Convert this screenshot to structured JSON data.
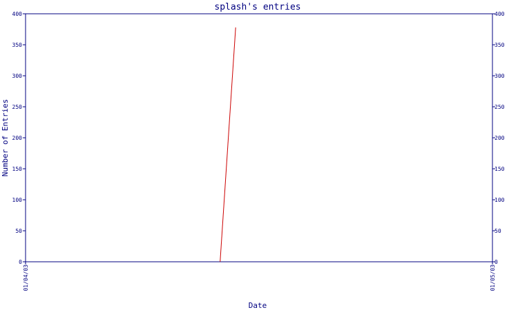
{
  "chart_data": {
    "type": "line",
    "title": "splash's entries",
    "xlabel": "Date",
    "ylabel": "Number of Entries",
    "x_ticks": [
      "01/04/03",
      "01/05/03"
    ],
    "ylim": [
      0,
      400
    ],
    "y_ticks": [
      0,
      50,
      100,
      150,
      200,
      250,
      300,
      350,
      400
    ],
    "grid": false,
    "legend": "none",
    "series": [
      {
        "color": "#cc0000",
        "x": [
          "01/04/03 10:00",
          "01/04/03 10:48"
        ],
        "values": [
          0,
          378
        ]
      }
    ]
  }
}
